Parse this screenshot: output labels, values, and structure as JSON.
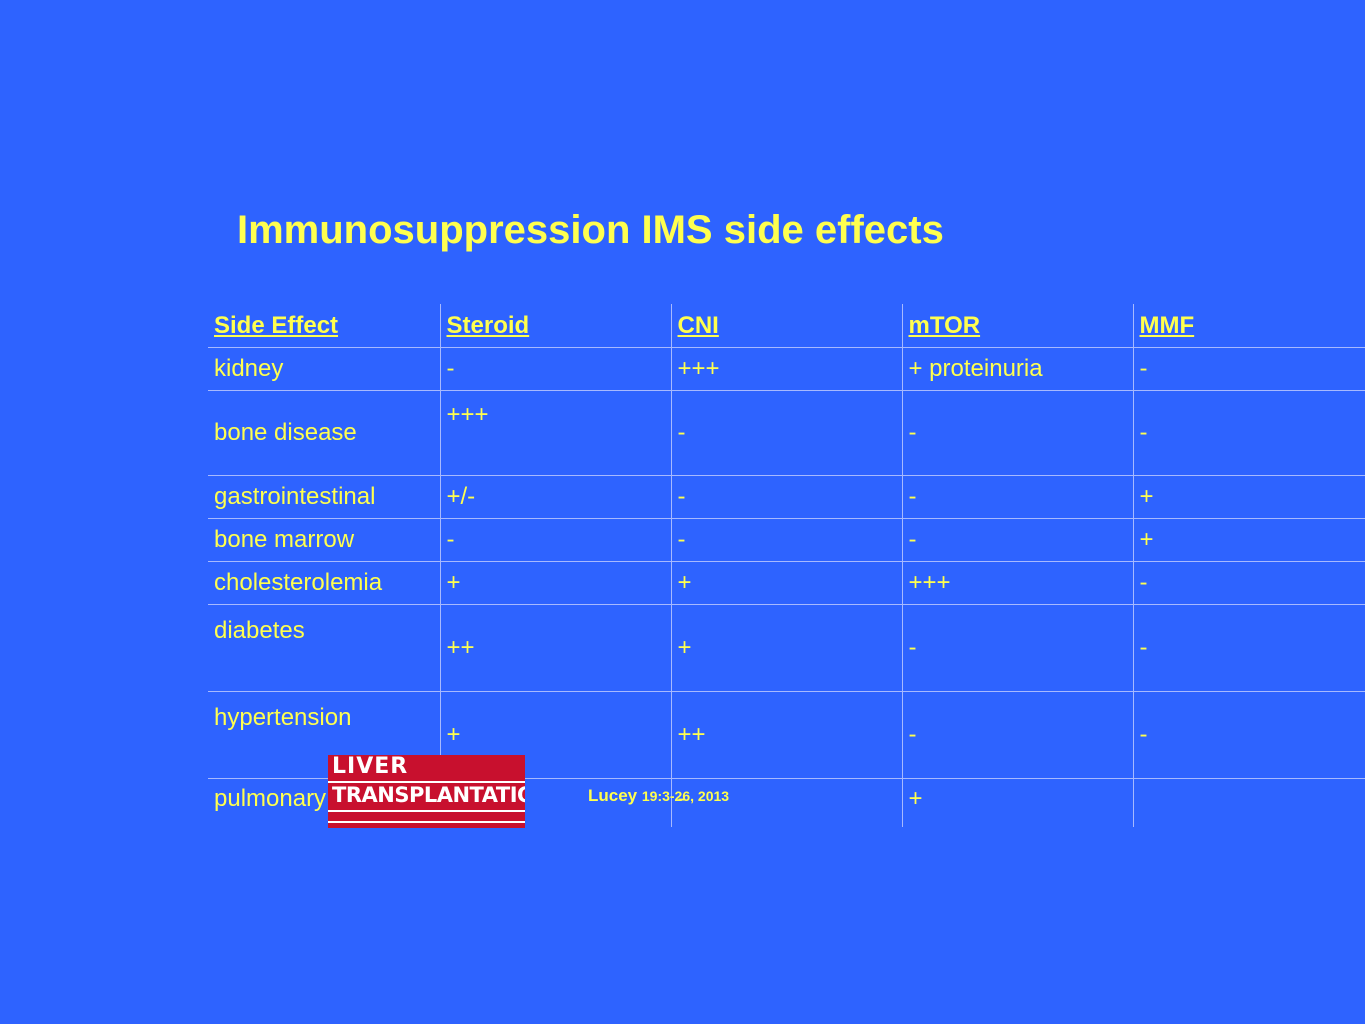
{
  "title": "Immunosuppression IMS side effects",
  "table": {
    "headers": [
      "Side Effect",
      "Steroid",
      "CNI",
      "mTOR",
      "MMF"
    ],
    "rows": [
      [
        "kidney",
        "-",
        "+++",
        "+ proteinuria",
        "-"
      ],
      [
        "bone disease",
        "+++",
        "-",
        "-",
        "-"
      ],
      [
        "gastrointestinal",
        "+/-",
        "-",
        "-",
        "+"
      ],
      [
        "bone marrow",
        "-",
        "-",
        "-",
        "+"
      ],
      [
        "cholesterolemia",
        "+",
        "+",
        "+++",
        "-"
      ],
      [
        "diabetes",
        "++",
        "+",
        "-",
        "-"
      ],
      [
        "hypertension",
        "+",
        "++",
        "-",
        "-"
      ],
      [
        "pulmonary fibrosis",
        "-",
        "-",
        "+",
        ""
      ]
    ]
  },
  "citation": {
    "author": "Lucey",
    "reference": "19:3-26, 2013"
  },
  "journal_logo": {
    "line1": "LIVER",
    "line2": "TRANSPLANTATION"
  },
  "colors": {
    "background": "#2e63ff",
    "text": "#ffff4f",
    "logo_red": "#c8102e"
  }
}
